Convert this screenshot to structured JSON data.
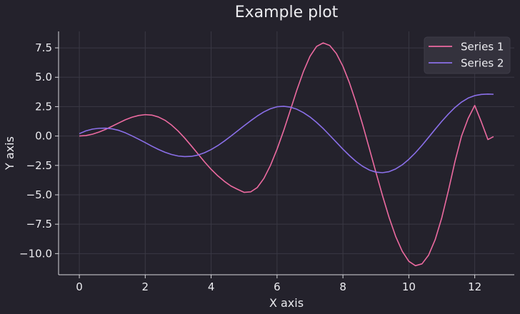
{
  "chart_data": {
    "type": "line",
    "title": "Example plot",
    "xlabel": "X axis",
    "ylabel": "Y axis",
    "xlim": [
      -0.63,
      13.2
    ],
    "ylim": [
      -11.8,
      8.9
    ],
    "xticks": [
      0,
      2,
      4,
      6,
      8,
      10,
      12
    ],
    "xtick_labels": [
      "0",
      "2",
      "4",
      "6",
      "8",
      "10",
      "12"
    ],
    "yticks": [
      -10,
      -7.5,
      -5,
      -2.5,
      0,
      2.5,
      5,
      7.5
    ],
    "ytick_labels": [
      "−10.0",
      "−7.5",
      "−5.0",
      "−2.5",
      "0.0",
      "2.5",
      "5.0",
      "7.5"
    ],
    "grid": true,
    "legend_position": "top-right",
    "colors": {
      "background": "#24222c",
      "grid": "#3a3844",
      "axis": "#d8d8dc",
      "text": "#ececf0",
      "legend_bg": "#34323d"
    },
    "series": [
      {
        "name": "Series 1",
        "color": "#ec6aa0",
        "x": [
          0,
          0.2,
          0.4,
          0.6,
          0.8,
          1.0,
          1.2,
          1.4,
          1.6,
          1.8,
          2.0,
          2.2,
          2.4,
          2.6,
          2.8,
          3.0,
          3.2,
          3.4,
          3.6,
          3.8,
          4.0,
          4.2,
          4.4,
          4.6,
          4.8,
          5.0,
          5.2,
          5.4,
          5.6,
          5.8,
          6.0,
          6.2,
          6.4,
          6.6,
          6.8,
          7.0,
          7.2,
          7.4,
          7.6,
          7.8,
          8.0,
          8.2,
          8.4,
          8.6,
          8.8,
          9.0,
          9.2,
          9.4,
          9.6,
          9.8,
          10.0,
          10.2,
          10.4,
          10.6,
          10.8,
          11.0,
          11.2,
          11.4,
          11.6,
          11.8,
          12.0,
          12.2,
          12.4,
          12.57
        ],
        "y": [
          0,
          0.04,
          0.16,
          0.34,
          0.57,
          0.84,
          1.12,
          1.39,
          1.6,
          1.75,
          1.82,
          1.78,
          1.62,
          1.34,
          0.93,
          0.42,
          -0.18,
          -0.84,
          -1.52,
          -2.2,
          -2.83,
          -3.38,
          -3.85,
          -4.25,
          -4.53,
          -4.79,
          -4.75,
          -4.38,
          -3.61,
          -2.5,
          -1.12,
          0.45,
          2.16,
          3.9,
          5.48,
          6.78,
          7.62,
          7.92,
          7.7,
          7.02,
          5.93,
          4.51,
          2.82,
          0.95,
          -1.05,
          -3.08,
          -5.06,
          -6.92,
          -8.54,
          -9.8,
          -10.66,
          -11.03,
          -10.87,
          -10.13,
          -8.81,
          -6.95,
          -4.65,
          -2.17,
          0.0,
          1.5,
          2.6,
          1.2,
          -0.3,
          -0.05
        ]
      },
      {
        "name": "Series 2",
        "color": "#8a6fe8",
        "x": [
          0,
          0.2,
          0.4,
          0.6,
          0.8,
          1.0,
          1.2,
          1.4,
          1.6,
          1.8,
          2.0,
          2.2,
          2.4,
          2.6,
          2.8,
          3.0,
          3.2,
          3.4,
          3.6,
          3.8,
          4.0,
          4.2,
          4.4,
          4.6,
          4.8,
          5.0,
          5.2,
          5.4,
          5.6,
          5.8,
          6.0,
          6.2,
          6.4,
          6.6,
          6.8,
          7.0,
          7.2,
          7.4,
          7.6,
          7.8,
          8.0,
          8.2,
          8.4,
          8.6,
          8.8,
          9.0,
          9.2,
          9.4,
          9.6,
          9.8,
          10.0,
          10.2,
          10.4,
          10.6,
          10.8,
          11.0,
          11.2,
          11.4,
          11.6,
          11.8,
          12.0,
          12.2,
          12.4,
          12.57
        ],
        "y": [
          0.2,
          0.44,
          0.59,
          0.66,
          0.67,
          0.61,
          0.48,
          0.27,
          0.01,
          -0.27,
          -0.56,
          -0.86,
          -1.14,
          -1.38,
          -1.57,
          -1.7,
          -1.75,
          -1.73,
          -1.62,
          -1.42,
          -1.15,
          -0.82,
          -0.43,
          -0.01,
          0.43,
          0.87,
          1.3,
          1.7,
          2.05,
          2.32,
          2.49,
          2.53,
          2.46,
          2.28,
          1.99,
          1.62,
          1.16,
          0.64,
          0.06,
          -0.53,
          -1.12,
          -1.67,
          -2.17,
          -2.58,
          -2.89,
          -3.07,
          -3.12,
          -3.03,
          -2.8,
          -2.45,
          -1.98,
          -1.42,
          -0.79,
          -0.11,
          0.58,
          1.25,
          1.87,
          2.43,
          2.89,
          3.23,
          3.44,
          3.54,
          3.57,
          3.55
        ]
      }
    ]
  }
}
